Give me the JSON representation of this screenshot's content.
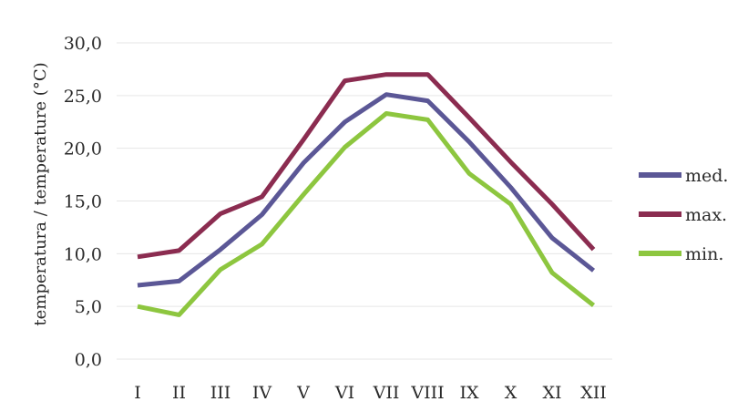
{
  "chart_data": {
    "type": "line",
    "categories": [
      "I",
      "II",
      "III",
      "IV",
      "V",
      "VI",
      "VII",
      "VIII",
      "IX",
      "X",
      "XI",
      "XII"
    ],
    "ylabel": "temperatura / temperature (°C)",
    "xlabel": "",
    "ylim": [
      0,
      30
    ],
    "yticks": [
      "0,0",
      "5,0",
      "10,0",
      "15,0",
      "20,0",
      "25,0",
      "30,0"
    ],
    "grid": true,
    "legend_position": "right",
    "series": [
      {
        "name": "med.",
        "color": "#5b5796",
        "values": [
          7.0,
          7.4,
          10.4,
          13.7,
          18.6,
          22.5,
          25.1,
          24.5,
          20.6,
          16.3,
          11.5,
          8.4
        ]
      },
      {
        "name": "max.",
        "color": "#8b2c50",
        "values": [
          9.7,
          10.3,
          13.8,
          15.4,
          20.8,
          26.4,
          27.0,
          27.0,
          22.9,
          18.7,
          14.7,
          10.4
        ]
      },
      {
        "name": "min.",
        "color": "#8dc63f",
        "values": [
          5.0,
          4.2,
          8.5,
          10.9,
          15.6,
          20.1,
          23.3,
          22.7,
          17.6,
          14.7,
          8.2,
          5.1
        ]
      }
    ]
  }
}
